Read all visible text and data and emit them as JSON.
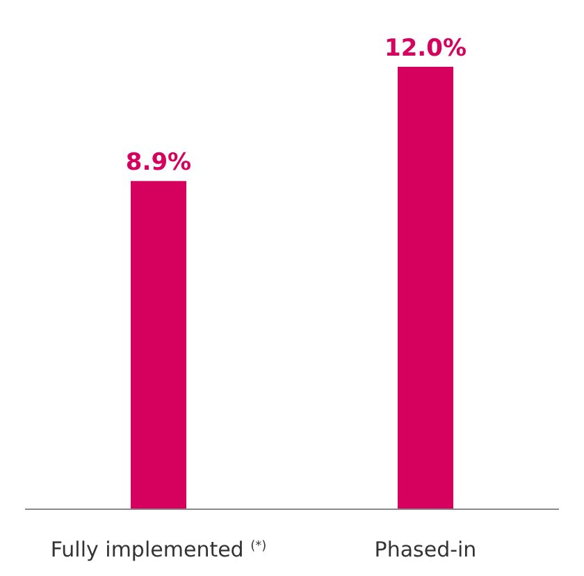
{
  "chart_data": {
    "type": "bar",
    "categories": [
      "Fully implemented $^{(*)}$",
      "Phased-in"
    ],
    "values": [
      8.9,
      12.0
    ],
    "color": "#d6005f",
    "value_labels": [
      "8.9%",
      "12.0%"
    ],
    "grid": false,
    "legend": false
  }
}
